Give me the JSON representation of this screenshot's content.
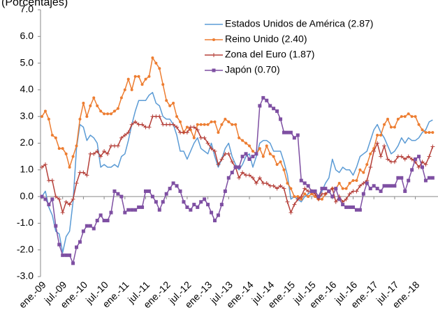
{
  "chart_data": {
    "type": "line",
    "subtitle": "(Porcentajes)",
    "categories": [
      "ene.-09",
      null,
      null,
      null,
      null,
      null,
      "jul.-09",
      null,
      null,
      null,
      null,
      null,
      "ene.-10",
      null,
      null,
      null,
      null,
      null,
      "jul.-10",
      null,
      null,
      null,
      null,
      null,
      "ene.-11",
      null,
      null,
      null,
      null,
      null,
      "jul.-11",
      null,
      null,
      null,
      null,
      null,
      "ene.-12",
      null,
      null,
      null,
      null,
      null,
      "jul.-12",
      null,
      null,
      null,
      null,
      null,
      "ene.-13",
      null,
      null,
      null,
      null,
      null,
      "jul.-13",
      null,
      null,
      null,
      null,
      null,
      "ene.-14",
      null,
      null,
      null,
      null,
      null,
      "jul.-14",
      null,
      null,
      null,
      null,
      null,
      "ene.-15",
      null,
      null,
      null,
      null,
      null,
      "jul.-15",
      null,
      null,
      null,
      null,
      null,
      "ene.-16",
      null,
      null,
      null,
      null,
      null,
      "jul.-16",
      null,
      null,
      null,
      null,
      null,
      "ene.-17",
      null,
      null,
      null,
      null,
      null,
      "jul.-17",
      null,
      null,
      null,
      null,
      null,
      "ene.-18",
      null,
      null,
      null,
      null,
      null
    ],
    "series": [
      {
        "name": "Estados Unidos de América (2.87)",
        "color": "#5b9bd5",
        "marker": "none",
        "values": [
          0.0,
          0.2,
          -0.4,
          -0.7,
          -1.3,
          -1.4,
          -2.1,
          -1.5,
          -1.3,
          -0.2,
          1.8,
          2.7,
          2.6,
          2.1,
          2.3,
          2.2,
          2.0,
          1.1,
          1.2,
          1.1,
          1.1,
          1.2,
          1.1,
          1.5,
          1.6,
          2.1,
          2.7,
          3.2,
          3.6,
          3.6,
          3.6,
          3.8,
          3.9,
          3.5,
          3.4,
          3.0,
          2.9,
          2.9,
          2.7,
          2.3,
          1.7,
          1.7,
          1.4,
          1.7,
          2.0,
          2.2,
          1.8,
          1.7,
          1.6,
          2.0,
          1.5,
          1.1,
          1.4,
          1.8,
          2.0,
          1.5,
          1.2,
          1.0,
          1.2,
          1.5,
          1.6,
          1.1,
          1.5,
          2.0,
          2.1,
          2.1,
          2.0,
          1.7,
          1.7,
          1.7,
          1.3,
          0.8,
          -0.1,
          0.0,
          -0.1,
          -0.2,
          0.0,
          0.1,
          0.2,
          0.2,
          0.0,
          0.2,
          0.5,
          0.7,
          1.4,
          1.0,
          0.9,
          1.1,
          1.0,
          1.0,
          0.8,
          1.1,
          1.5,
          1.6,
          1.7,
          2.1,
          2.5,
          2.7,
          2.4,
          2.2,
          1.9,
          1.6,
          1.7,
          1.9,
          2.2,
          2.0,
          2.2,
          2.1,
          2.1,
          2.2,
          2.4,
          2.5,
          2.8,
          2.87
        ]
      },
      {
        "name": "Reino Unido (2.40)",
        "color": "#ed7d31",
        "marker": "circle",
        "values": [
          3.0,
          3.2,
          2.9,
          2.3,
          2.2,
          1.8,
          1.8,
          1.6,
          1.1,
          1.5,
          1.9,
          2.9,
          3.5,
          3.0,
          3.4,
          3.7,
          3.4,
          3.2,
          3.1,
          3.1,
          3.1,
          3.2,
          3.3,
          3.7,
          4.0,
          4.4,
          4.0,
          4.5,
          4.5,
          4.2,
          4.4,
          4.5,
          5.2,
          5.0,
          4.8,
          4.2,
          3.6,
          3.4,
          3.5,
          3.0,
          2.8,
          2.4,
          2.6,
          2.5,
          2.2,
          2.7,
          2.7,
          2.7,
          2.7,
          2.8,
          2.8,
          2.4,
          2.7,
          2.9,
          2.8,
          2.7,
          2.7,
          2.2,
          2.1,
          2.0,
          1.9,
          1.7,
          1.6,
          1.8,
          1.5,
          1.9,
          1.6,
          1.5,
          1.2,
          1.3,
          1.0,
          0.5,
          0.3,
          0.0,
          0.0,
          -0.1,
          0.1,
          0.0,
          0.1,
          0.0,
          -0.1,
          -0.1,
          0.1,
          0.2,
          0.3,
          0.3,
          0.5,
          0.3,
          0.3,
          0.5,
          0.6,
          0.6,
          1.0,
          0.9,
          1.2,
          1.6,
          1.8,
          2.3,
          2.3,
          2.7,
          2.9,
          2.6,
          2.6,
          2.9,
          3.0,
          3.0,
          3.1,
          3.0,
          3.0,
          2.7,
          2.5,
          2.4,
          2.4,
          2.4
        ]
      },
      {
        "name": "Zona del Euro (1.87)",
        "color": "#b5403a",
        "marker": "plus",
        "values": [
          1.1,
          1.2,
          0.6,
          0.6,
          0.0,
          -0.1,
          -0.6,
          -0.2,
          -0.3,
          -0.1,
          0.5,
          0.9,
          0.9,
          0.8,
          1.6,
          1.6,
          1.7,
          1.5,
          1.7,
          1.6,
          1.9,
          1.9,
          1.9,
          2.2,
          2.3,
          2.4,
          2.7,
          2.8,
          2.7,
          2.7,
          2.6,
          2.6,
          3.0,
          3.0,
          3.0,
          2.7,
          2.7,
          2.7,
          2.7,
          2.6,
          2.4,
          2.4,
          2.4,
          2.6,
          2.6,
          2.5,
          2.2,
          2.2,
          2.0,
          1.8,
          1.7,
          1.2,
          1.4,
          1.6,
          1.6,
          1.3,
          1.1,
          0.7,
          0.9,
          0.8,
          0.8,
          0.7,
          0.5,
          0.7,
          0.5,
          0.5,
          0.4,
          0.4,
          0.3,
          0.4,
          0.3,
          -0.2,
          -0.6,
          -0.3,
          -0.1,
          0.0,
          0.3,
          0.2,
          0.2,
          0.1,
          -0.1,
          0.1,
          0.1,
          0.2,
          0.3,
          -0.2,
          0.0,
          -0.2,
          -0.1,
          0.1,
          0.2,
          0.2,
          0.4,
          0.5,
          0.6,
          1.1,
          1.7,
          2.0,
          1.5,
          1.9,
          1.4,
          1.3,
          1.3,
          1.5,
          1.5,
          1.4,
          1.5,
          1.4,
          1.3,
          1.1,
          1.3,
          1.2,
          1.5,
          1.87
        ]
      },
      {
        "name": "Japón (0.70)",
        "color": "#7e4fa2",
        "marker": "square",
        "values": [
          0.0,
          -0.1,
          -0.3,
          -0.1,
          -1.1,
          -1.8,
          -2.2,
          -2.2,
          -2.2,
          -2.5,
          -1.9,
          -1.7,
          -1.3,
          -1.1,
          -1.1,
          -1.2,
          -0.9,
          -0.7,
          -0.9,
          -0.9,
          -0.6,
          0.2,
          0.1,
          0.0,
          -0.6,
          -0.5,
          -0.5,
          -0.5,
          -0.4,
          -0.4,
          0.2,
          0.2,
          0.0,
          -0.2,
          -0.5,
          -0.2,
          0.1,
          0.3,
          0.5,
          0.4,
          0.2,
          -0.2,
          -0.4,
          -0.5,
          -0.3,
          -0.4,
          -0.2,
          -0.1,
          -0.3,
          -0.6,
          -0.9,
          -0.7,
          -0.3,
          0.2,
          0.7,
          0.9,
          1.1,
          1.1,
          1.5,
          1.6,
          1.4,
          1.5,
          1.6,
          3.4,
          3.7,
          3.6,
          3.4,
          3.3,
          3.2,
          2.9,
          2.4,
          2.4,
          2.4,
          2.2,
          2.3,
          0.6,
          0.5,
          0.4,
          0.2,
          0.2,
          0.0,
          0.3,
          0.3,
          0.2,
          0.0,
          0.3,
          -0.1,
          -0.3,
          -0.4,
          -0.4,
          -0.4,
          -0.5,
          -0.5,
          0.1,
          0.5,
          0.3,
          0.4,
          0.3,
          0.2,
          0.4,
          0.4,
          0.4,
          0.4,
          0.7,
          0.7,
          0.2,
          0.6,
          1.0,
          1.4,
          1.5,
          1.1,
          0.6,
          0.7,
          0.7
        ]
      }
    ],
    "ylim": [
      -3,
      7
    ],
    "yticks": [
      {
        "value": -3,
        "label": "-3.0"
      },
      {
        "value": -2,
        "label": "-2.0"
      },
      {
        "value": -1,
        "label": "-1.0"
      },
      {
        "value": 0,
        "label": "0.0"
      },
      {
        "value": 1,
        "label": "1.0"
      },
      {
        "value": 2,
        "label": "2.0"
      },
      {
        "value": 3,
        "label": "3.0"
      },
      {
        "value": 4,
        "label": "4.0"
      },
      {
        "value": 5,
        "label": "5.0"
      },
      {
        "value": 6,
        "label": "6.0"
      },
      {
        "value": 7,
        "label": "7.0"
      }
    ],
    "grid": false,
    "legend": "upper right"
  }
}
